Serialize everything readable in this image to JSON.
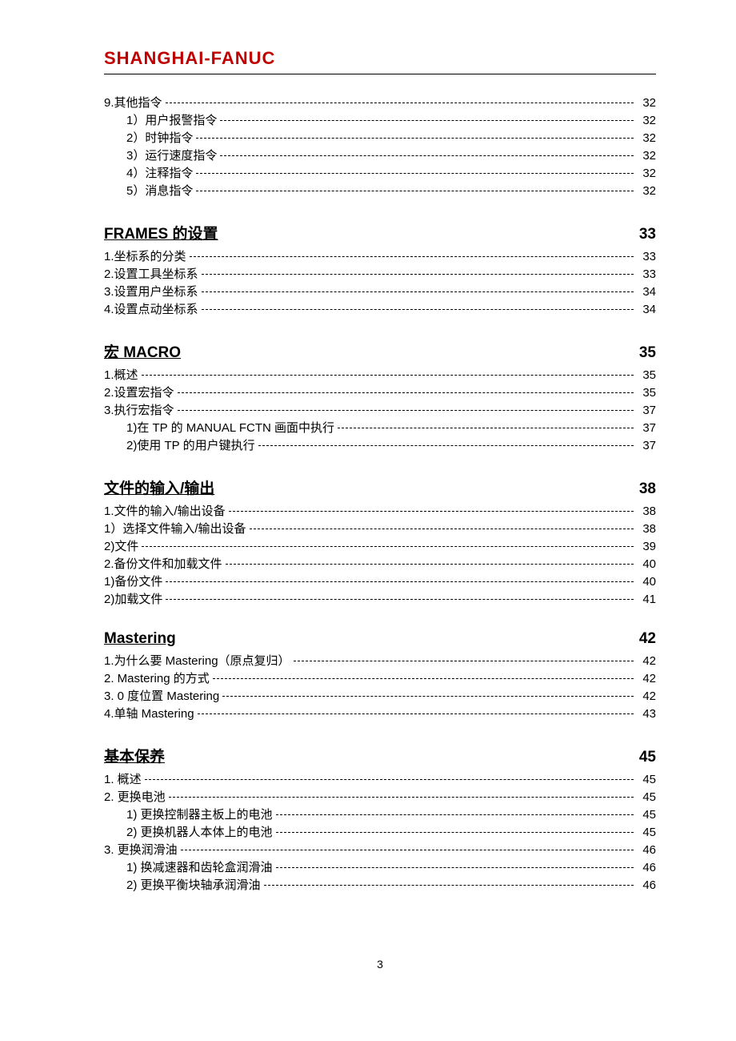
{
  "header": {
    "title": "SHANGHAI-FANUC"
  },
  "colors": {
    "header_color": "#c00000",
    "text_color": "#000000",
    "background": "#ffffff"
  },
  "typography": {
    "header_fontsize": 22,
    "section_fontsize": 19,
    "body_fontsize": 15
  },
  "page_number": "3",
  "continuation": {
    "items": [
      {
        "label": "9.其他指令",
        "page": "32",
        "indent": 0
      },
      {
        "label": "1）用户报警指令",
        "page": "32",
        "indent": 1
      },
      {
        "label": "2）时钟指令",
        "page": "32",
        "indent": 1
      },
      {
        "label": "3）运行速度指令",
        "page": "32",
        "indent": 1
      },
      {
        "label": "4）注释指令",
        "page": "32",
        "indent": 1
      },
      {
        "label": "5）消息指令",
        "page": "32",
        "indent": 1
      }
    ]
  },
  "sections": [
    {
      "title": "FRAMES 的设置",
      "page": "33",
      "items": [
        {
          "label": "1.坐标系的分类",
          "page": "33",
          "indent": 0
        },
        {
          "label": "2.设置工具坐标系",
          "page": "33",
          "indent": 0
        },
        {
          "label": "3.设置用户坐标系",
          "page": "34",
          "indent": 0
        },
        {
          "label": "4.设置点动坐标系",
          "page": "34",
          "indent": 0
        }
      ]
    },
    {
      "title": "宏 MACRO ",
      "page": "35",
      "items": [
        {
          "label": "1.概述",
          "page": "35",
          "indent": 0
        },
        {
          "label": "2.设置宏指令",
          "page": "35",
          "indent": 0
        },
        {
          "label": "3.执行宏指令",
          "page": "37",
          "indent": 0
        },
        {
          "label": "1)在 TP 的 MANUAL FCTN 画面中执行",
          "page": "37",
          "indent": 1
        },
        {
          "label": "2)使用 TP 的用户键执行",
          "page": "37",
          "indent": 1
        }
      ]
    },
    {
      "title": "文件的输入/输出",
      "page": "38",
      "items": [
        {
          "label": "1.文件的输入/输出设备",
          "page": "38",
          "indent": 0
        },
        {
          "label": "1）选择文件输入/输出设备",
          "page": "38",
          "indent": 0
        },
        {
          "label": "2)文件",
          "page": "39",
          "indent": 0
        },
        {
          "label": "2.备份文件和加载文件",
          "page": "40",
          "indent": 0
        },
        {
          "label": "1)备份文件",
          "page": "40",
          "indent": 0
        },
        {
          "label": "2)加载文件",
          "page": "41",
          "indent": 0
        }
      ]
    },
    {
      "title": "Mastering ",
      "page": "42",
      "items": [
        {
          "label": "1.为什么要 Mastering（原点复归）",
          "page": "42",
          "indent": 0
        },
        {
          "label": "2. Mastering 的方式",
          "page": "42",
          "indent": 0
        },
        {
          "label": "3. 0 度位置 Mastering",
          "page": "42",
          "indent": 0
        },
        {
          "label": "4.单轴 Mastering",
          "page": "43",
          "indent": 0
        }
      ]
    },
    {
      "title": "基本保养 ",
      "page": "45",
      "items": [
        {
          "label": "1.  概述",
          "page": "45",
          "indent": 0
        },
        {
          "label": "2.  更换电池",
          "page": "45",
          "indent": 0
        },
        {
          "label": "1)  更换控制器主板上的电池",
          "page": "45",
          "indent": 2
        },
        {
          "label": "2)  更换机器人本体上的电池",
          "page": "45",
          "indent": 2
        },
        {
          "label": "3.  更换润滑油",
          "page": "46",
          "indent": 0
        },
        {
          "label": "1)  换减速器和齿轮盒润滑油",
          "page": "46",
          "indent": 2
        },
        {
          "label": "2)  更换平衡块轴承润滑油",
          "page": "46",
          "indent": 2
        }
      ]
    }
  ]
}
